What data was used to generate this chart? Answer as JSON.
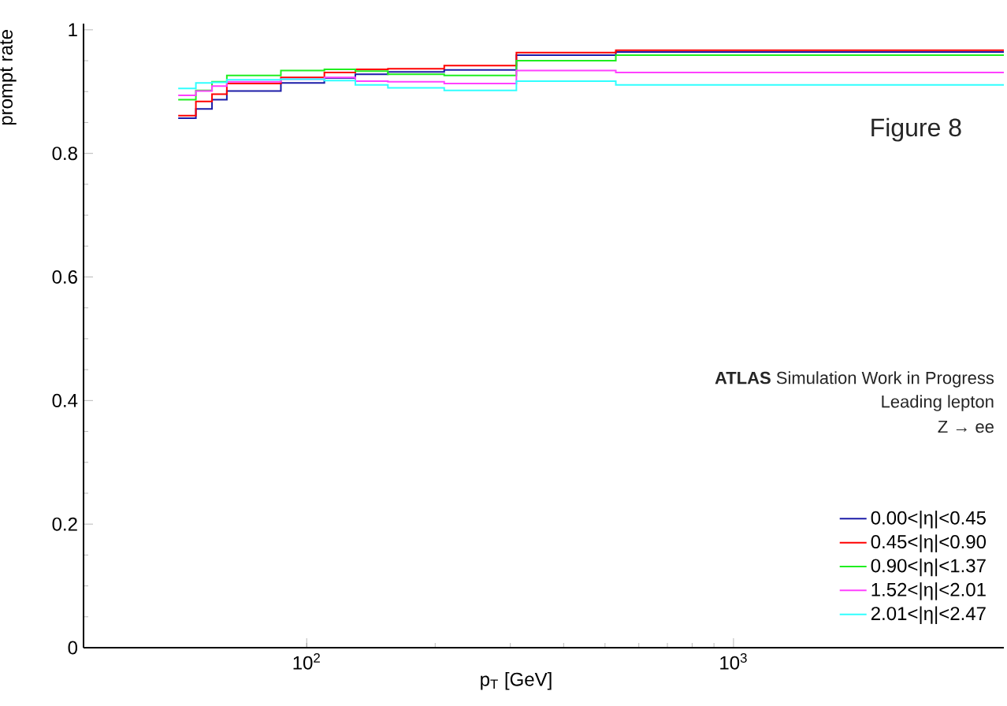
{
  "chart_data": {
    "type": "histogram",
    "xlabel": "p$_{T}$ [GeV]",
    "ylabel": "prompt rate",
    "annotations": [
      "Figure 8",
      "**ATLAS** Simulation Work in Progress",
      "Leading lepton",
      "Z → ee"
    ],
    "bins": [
      50,
      55,
      60,
      65,
      87,
      110,
      130,
      155,
      210,
      310,
      530,
      4300
    ],
    "series": [
      {
        "name": "0.00<|η|<0.45",
        "color": "#1c1ca8",
        "values": [
          0.857,
          0.872,
          0.887,
          0.901,
          0.914,
          0.922,
          0.928,
          0.932,
          0.935,
          0.959,
          0.964
        ]
      },
      {
        "name": "0.45<|η|<0.90",
        "color": "#ff0000",
        "values": [
          0.861,
          0.884,
          0.896,
          0.913,
          0.923,
          0.931,
          0.936,
          0.937,
          0.942,
          0.963,
          0.967
        ]
      },
      {
        "name": "0.90<|η|<1.37",
        "color": "#20ee20",
        "values": [
          0.887,
          0.902,
          0.916,
          0.926,
          0.934,
          0.936,
          0.933,
          0.928,
          0.926,
          0.95,
          0.959
        ]
      },
      {
        "name": "1.52<|η|<2.01",
        "color": "#ff40ff",
        "values": [
          0.894,
          0.901,
          0.909,
          0.916,
          0.92,
          0.923,
          0.917,
          0.916,
          0.913,
          0.934,
          0.931
        ]
      },
      {
        "name": "2.01<|η|<2.47",
        "color": "#30ffff",
        "values": [
          0.905,
          0.914,
          0.915,
          0.919,
          0.92,
          0.918,
          0.911,
          0.906,
          0.902,
          0.917,
          0.911
        ]
      }
    ],
    "log": "x",
    "xlim": [
      30,
      4300
    ],
    "ylim": [
      0,
      1.01
    ],
    "xticks": [
      {
        "value": 100,
        "label": "10$^{2}$"
      },
      {
        "value": 1000,
        "label": "10$^{3}$"
      }
    ],
    "yticks": [
      0,
      0.2,
      0.4,
      0.6,
      0.8,
      1
    ],
    "grid": false,
    "legend": "bottom right"
  }
}
